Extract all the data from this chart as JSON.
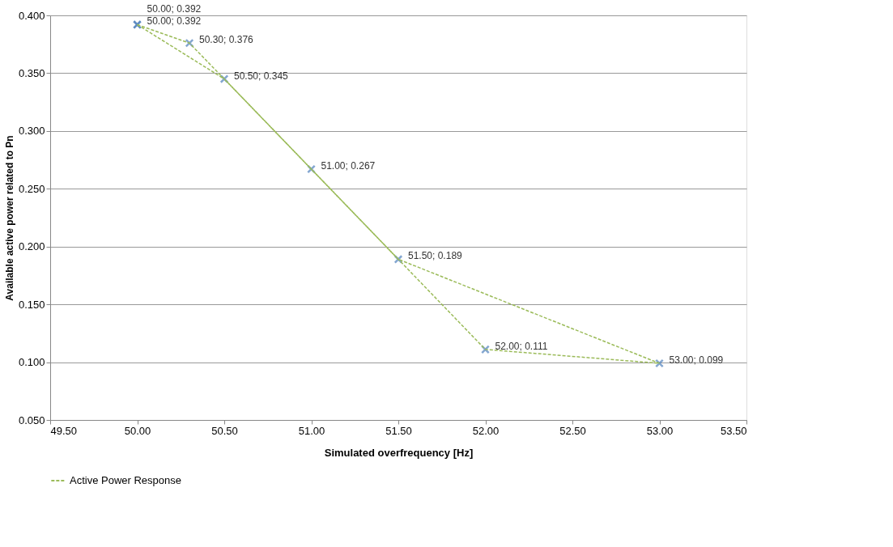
{
  "chart_data": {
    "type": "line",
    "xlabel": "Simulated overfrequency [Hz]",
    "ylabel": "Available active power related to Pn",
    "xlim": [
      49.5,
      53.5
    ],
    "ylim": [
      0.05,
      0.4
    ],
    "xticks": [
      {
        "value": 49.5,
        "label": "49.50"
      },
      {
        "value": 50,
        "label": "50.00"
      },
      {
        "value": 50.5,
        "label": "50.50"
      },
      {
        "value": 51,
        "label": "51.00"
      },
      {
        "value": 51.5,
        "label": "51.50"
      },
      {
        "value": 52,
        "label": "52.00"
      },
      {
        "value": 52.5,
        "label": "52.50"
      },
      {
        "value": 53,
        "label": "53.00"
      },
      {
        "value": 53.5,
        "label": "53.50"
      }
    ],
    "yticks": [
      {
        "value": 0.05,
        "label": "0.050"
      },
      {
        "value": 0.1,
        "label": "0.100"
      },
      {
        "value": 0.15,
        "label": "0.150"
      },
      {
        "value": 0.2,
        "label": "0.200"
      },
      {
        "value": 0.25,
        "label": "0.250"
      },
      {
        "value": 0.3,
        "label": "0.300"
      },
      {
        "value": 0.35,
        "label": "0.350"
      },
      {
        "value": 0.4,
        "label": "0.400"
      }
    ],
    "grid": "y",
    "legend": "bottom",
    "marker": "cross",
    "line_style": "dashed",
    "series": [
      {
        "name": "Active Power Response",
        "marker": "none",
        "color": "#9bbb59",
        "x": [
          50.0,
          50.3,
          50.5,
          51.0,
          51.5,
          52.0,
          53.0
        ],
        "values": [
          0.392,
          0.376,
          0.345,
          0.267,
          0.189,
          0.111,
          0.099
        ]
      },
      {
        "type": "line",
        "marker": "none",
        "color": "#9bbb59",
        "x": [
          50.0,
          50.5,
          51.5,
          53.0
        ],
        "values": [
          0.392,
          0.345,
          0.189,
          0.099
        ]
      },
      {
        "type": "scatter",
        "color": "#4f81bd",
        "x": [
          50.0,
          50.3,
          50.5,
          51.0,
          51.5,
          52.0,
          53.0,
          50.0
        ],
        "values": [
          0.392,
          0.376,
          0.345,
          0.267,
          0.189,
          0.111,
          0.099,
          0.392
        ],
        "value_labels": [
          "50.00; 0.392",
          "50.30; 0.376",
          "50.50; 0.345",
          "51.00; 0.267",
          "51.50; 0.189",
          "52.00; 0.111",
          "53.00; 0.099",
          "50.00; 0.392"
        ]
      }
    ]
  }
}
